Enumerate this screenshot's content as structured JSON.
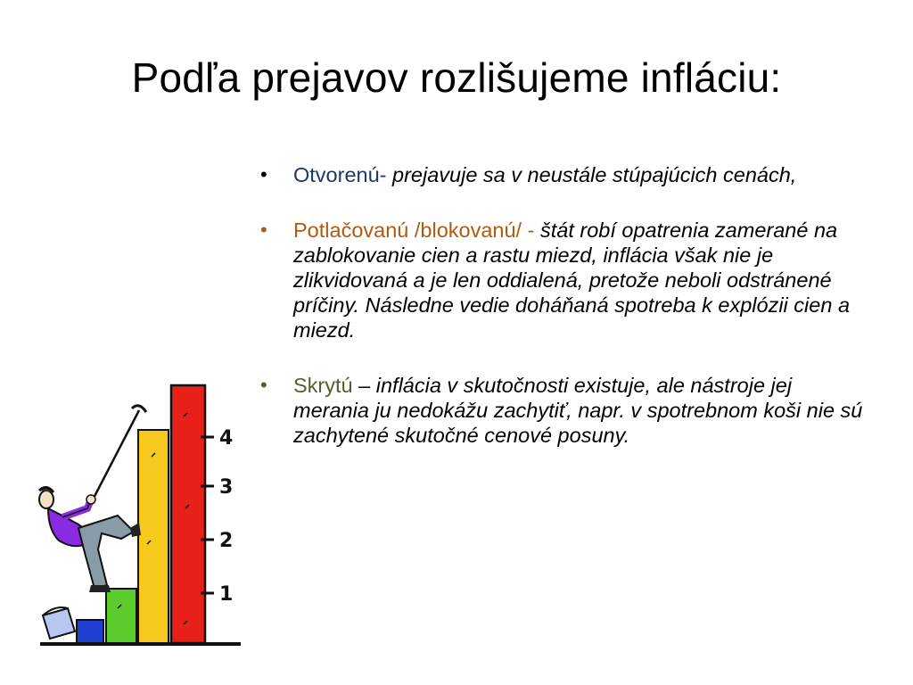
{
  "slide": {
    "title": "Podľa prejavov rozlišujeme infláciu:",
    "bullets": [
      {
        "term": "Otvorenú",
        "separator": "- ",
        "description": "prejavuje sa v neustále stúpajúcich cenách,"
      },
      {
        "term": "Potlačovanú /blokovanú/",
        "separator": " - ",
        "description": "štát robí opatrenia zamerané na zablokovanie cien a rastu miezd, inflácia však nie je zlikvidovaná a je len oddialená, pretože neboli odstránené príčiny. Následne  vedie doháňaná spotreba k explózii cien a miezd."
      },
      {
        "term": "Skrytú",
        "separator": " – ",
        "description": "inflácia v skutočnosti existuje, ale nástroje jej merania ju nedokážu zachytiť, napr. v spotrebnom koši nie sú zachytené skutočné cenové posuny."
      }
    ],
    "bullet_symbol": "•",
    "clipart": {
      "icon": "climber-bar-chart-icon",
      "scale_labels": [
        "1",
        "2",
        "3",
        "4"
      ],
      "bar_colors": [
        "#1e3fd1",
        "#5ccc2c",
        "#f7c81e",
        "#e8201a"
      ]
    },
    "colors": {
      "term_1": "#1f3864",
      "term_2": "#b15a0f",
      "term_3": "#4f6228"
    }
  }
}
